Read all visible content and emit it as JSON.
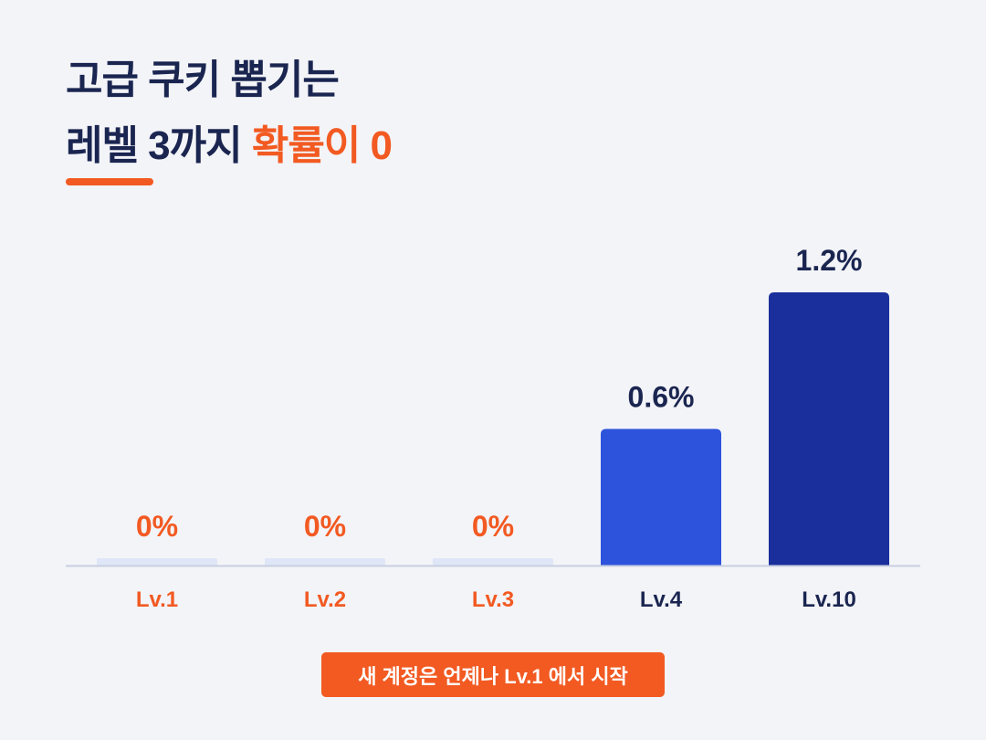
{
  "heading": {
    "line1": "고급 쿠키 뽑기는",
    "line2_prefix": "레벨 3까지 ",
    "line2_accent": "확률이 0"
  },
  "note": "새 계정은 언제나 Lv.1 에서 시작",
  "colors": {
    "navy": "#1a2550",
    "accent": "#f25a22",
    "bar_blue": "#2d52dc",
    "bar_navy": "#1a2f9c",
    "bar_empty": "#dfe6f7",
    "baseline": "#c8cfe0"
  },
  "chart_data": {
    "type": "bar",
    "categories": [
      "Lv.1",
      "Lv.2",
      "Lv.3",
      "Lv.4",
      "Lv.10"
    ],
    "values": [
      0,
      0,
      0,
      0.6,
      1.2
    ],
    "value_labels": [
      "0%",
      "0%",
      "0%",
      "0.6%",
      "1.2%"
    ],
    "bar_colors": [
      "#dfe6f7",
      "#dfe6f7",
      "#dfe6f7",
      "#2d52dc",
      "#1a2f9c"
    ],
    "label_colors": [
      "#f25a22",
      "#f25a22",
      "#f25a22",
      "#1a2550",
      "#1a2550"
    ],
    "unit": "%",
    "ylim": [
      0,
      1.2
    ],
    "grid": false,
    "legend": "none"
  }
}
